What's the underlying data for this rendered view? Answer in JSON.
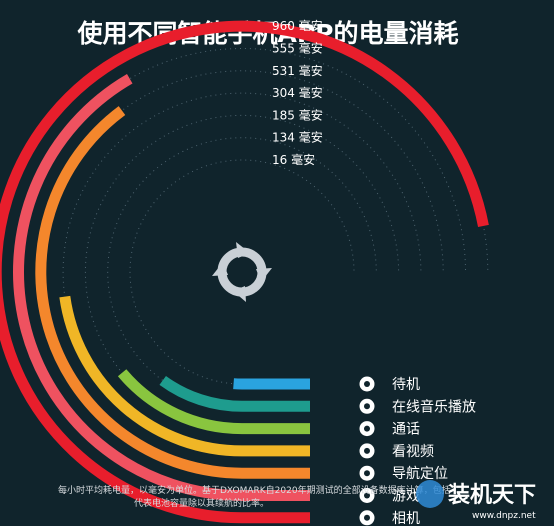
{
  "chart_data": {
    "type": "radial-bar",
    "title": "使用不同智能手机APP的电量消耗",
    "unit_label": "毫安",
    "categories": [
      "待机",
      "在线音乐播放",
      "通话",
      "看视频",
      "导航定位",
      "游戏",
      "相机"
    ],
    "icons": [
      "standby-icon",
      "music-icon",
      "phone-icon",
      "video-icon",
      "location-pin-icon",
      "gamepad-icon",
      "camera-icon"
    ],
    "values": [
      16,
      134,
      185,
      304,
      531,
      555,
      960
    ],
    "colors": [
      "#2aa3df",
      "#1e9c8e",
      "#89c53f",
      "#f0b626",
      "#f4872c",
      "#ef5260",
      "#e81e2c"
    ],
    "footnote_lines": [
      "每小时平均耗电量，以毫安为单位。基于DXOMARK自2020年期测试的全部设备数据库计算，包括",
      "代表电池容量除以其续航的比率。"
    ]
  },
  "watermark": {
    "text": "装机天下",
    "url": "www.dnpz.net"
  }
}
